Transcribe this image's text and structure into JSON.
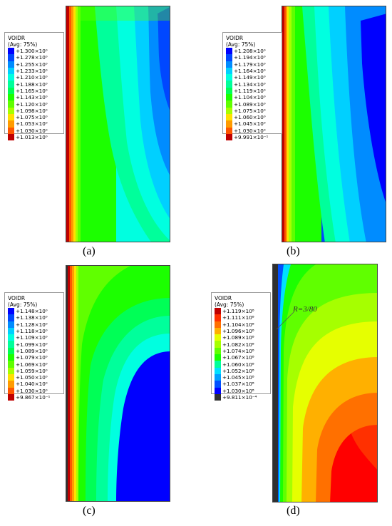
{
  "panels": [
    {
      "id": "a",
      "caption": "(a)",
      "legend": {
        "title": "VOIDR",
        "subtitle": "(Avg: 75%)",
        "labels": [
          "+1.300×10⁰",
          "+1.278×10⁰",
          "+1.255×10⁰",
          "+1.233×10⁰",
          "+1.210×10⁰",
          "+1.188×10⁰",
          "+1.165×10⁰",
          "+1.143×10⁰",
          "+1.120×10⁰",
          "+1.098×10⁰",
          "+1.075×10⁰",
          "+1.053×10⁰",
          "+1.030×10⁰",
          "+1.013×10⁰"
        ],
        "colors": [
          "#0000ff",
          "#0047ff",
          "#008cff",
          "#00d0ff",
          "#00ffe0",
          "#00ff9b",
          "#00ff56",
          "#1cff00",
          "#60ff00",
          "#a6ff00",
          "#ffe000",
          "#ff9b00",
          "#ff5600",
          "#c00000"
        ]
      }
    },
    {
      "id": "b",
      "caption": "(b)",
      "legend": {
        "title": "VOIDR",
        "subtitle": "(Avg: 75%)",
        "labels": [
          "+1.208×10⁰",
          "+1.194×10⁰",
          "+1.179×10⁰",
          "+1.164×10⁰",
          "+1.149×10⁰",
          "+1.134×10⁰",
          "+1.119×10⁰",
          "+1.104×10⁰",
          "+1.089×10⁰",
          "+1.075×10⁰",
          "+1.060×10⁰",
          "+1.045×10⁰",
          "+1.030×10⁰",
          "+9.991×10⁻¹"
        ],
        "colors": [
          "#0000ff",
          "#0047ff",
          "#008cff",
          "#00d0ff",
          "#00ffe0",
          "#00ff9b",
          "#00ff56",
          "#1cff00",
          "#60ff00",
          "#a6ff00",
          "#ffe000",
          "#ff9b00",
          "#ff5600",
          "#c00000"
        ]
      }
    },
    {
      "id": "c",
      "caption": "(c)",
      "legend": {
        "title": "VOIDR",
        "subtitle": "(Avg: 75%)",
        "labels": [
          "+1.148×10⁰",
          "+1.138×10⁰",
          "+1.128×10⁰",
          "+1.118×10⁰",
          "+1.109×10⁰",
          "+1.099×10⁰",
          "+1.089×10⁰",
          "+1.079×10⁰",
          "+1.069×10⁰",
          "+1.059×10⁰",
          "+1.050×10⁰",
          "+1.040×10⁰",
          "+1.030×10⁰",
          "+9.867×10⁻¹"
        ],
        "colors": [
          "#0000ff",
          "#0047ff",
          "#008cff",
          "#00d0ff",
          "#00ffe0",
          "#00ff9b",
          "#00ff56",
          "#1cff00",
          "#60ff00",
          "#a6ff00",
          "#ffe000",
          "#ff9b00",
          "#ff5600",
          "#c00000"
        ]
      }
    },
    {
      "id": "d",
      "caption": "(d)",
      "annotation": "R=3/80",
      "legend": {
        "title": "VOIDR",
        "subtitle": "(Avg: 75%)",
        "labels": [
          "+1.119×10⁸",
          "+1.111×10⁸",
          "+1.104×10⁸",
          "+1.096×10⁸",
          "+1.089×10⁸",
          "+1.082×10⁸",
          "+1.074×10⁸",
          "+1.067×10⁸",
          "+1.060×10⁸",
          "+1.052×10⁸",
          "+1.045×10⁸",
          "+1.037×10⁸",
          "+1.030×10⁸",
          "+9.811×10⁻⁴"
        ],
        "colors": [
          "#c00000",
          "#ff3000",
          "#ff7000",
          "#ffb000",
          "#e6ff00",
          "#a6ff00",
          "#60ff00",
          "#1cff00",
          "#00ff9b",
          "#00e0ff",
          "#00a0ff",
          "#0050ff",
          "#0000ff",
          "#303030"
        ]
      }
    }
  ]
}
